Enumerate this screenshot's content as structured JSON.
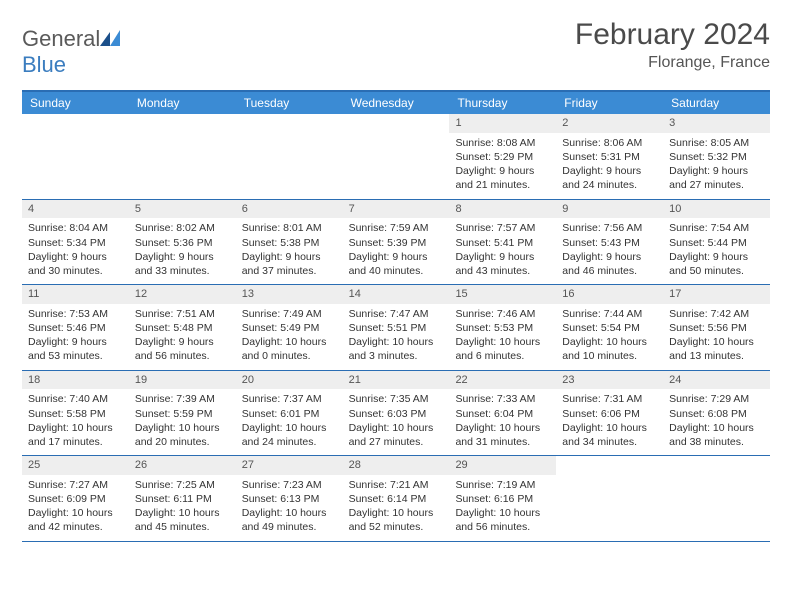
{
  "brand": {
    "part1": "General",
    "part2": "Blue"
  },
  "title": "February 2024",
  "location": "Florange, France",
  "colors": {
    "headerBar": "#3b8bd4",
    "borderBlue": "#2a6db3",
    "dayNumberBg": "#eeeeee",
    "text": "#333333",
    "logoBlue": "#3b7dbf"
  },
  "weekdays": [
    "Sunday",
    "Monday",
    "Tuesday",
    "Wednesday",
    "Thursday",
    "Friday",
    "Saturday"
  ],
  "weeks": [
    [
      {
        "n": "",
        "sunrise": "",
        "sunset": "",
        "daylight1": "",
        "daylight2": ""
      },
      {
        "n": "",
        "sunrise": "",
        "sunset": "",
        "daylight1": "",
        "daylight2": ""
      },
      {
        "n": "",
        "sunrise": "",
        "sunset": "",
        "daylight1": "",
        "daylight2": ""
      },
      {
        "n": "",
        "sunrise": "",
        "sunset": "",
        "daylight1": "",
        "daylight2": ""
      },
      {
        "n": "1",
        "sunrise": "Sunrise: 8:08 AM",
        "sunset": "Sunset: 5:29 PM",
        "daylight1": "Daylight: 9 hours",
        "daylight2": "and 21 minutes."
      },
      {
        "n": "2",
        "sunrise": "Sunrise: 8:06 AM",
        "sunset": "Sunset: 5:31 PM",
        "daylight1": "Daylight: 9 hours",
        "daylight2": "and 24 minutes."
      },
      {
        "n": "3",
        "sunrise": "Sunrise: 8:05 AM",
        "sunset": "Sunset: 5:32 PM",
        "daylight1": "Daylight: 9 hours",
        "daylight2": "and 27 minutes."
      }
    ],
    [
      {
        "n": "4",
        "sunrise": "Sunrise: 8:04 AM",
        "sunset": "Sunset: 5:34 PM",
        "daylight1": "Daylight: 9 hours",
        "daylight2": "and 30 minutes."
      },
      {
        "n": "5",
        "sunrise": "Sunrise: 8:02 AM",
        "sunset": "Sunset: 5:36 PM",
        "daylight1": "Daylight: 9 hours",
        "daylight2": "and 33 minutes."
      },
      {
        "n": "6",
        "sunrise": "Sunrise: 8:01 AM",
        "sunset": "Sunset: 5:38 PM",
        "daylight1": "Daylight: 9 hours",
        "daylight2": "and 37 minutes."
      },
      {
        "n": "7",
        "sunrise": "Sunrise: 7:59 AM",
        "sunset": "Sunset: 5:39 PM",
        "daylight1": "Daylight: 9 hours",
        "daylight2": "and 40 minutes."
      },
      {
        "n": "8",
        "sunrise": "Sunrise: 7:57 AM",
        "sunset": "Sunset: 5:41 PM",
        "daylight1": "Daylight: 9 hours",
        "daylight2": "and 43 minutes."
      },
      {
        "n": "9",
        "sunrise": "Sunrise: 7:56 AM",
        "sunset": "Sunset: 5:43 PM",
        "daylight1": "Daylight: 9 hours",
        "daylight2": "and 46 minutes."
      },
      {
        "n": "10",
        "sunrise": "Sunrise: 7:54 AM",
        "sunset": "Sunset: 5:44 PM",
        "daylight1": "Daylight: 9 hours",
        "daylight2": "and 50 minutes."
      }
    ],
    [
      {
        "n": "11",
        "sunrise": "Sunrise: 7:53 AM",
        "sunset": "Sunset: 5:46 PM",
        "daylight1": "Daylight: 9 hours",
        "daylight2": "and 53 minutes."
      },
      {
        "n": "12",
        "sunrise": "Sunrise: 7:51 AM",
        "sunset": "Sunset: 5:48 PM",
        "daylight1": "Daylight: 9 hours",
        "daylight2": "and 56 minutes."
      },
      {
        "n": "13",
        "sunrise": "Sunrise: 7:49 AM",
        "sunset": "Sunset: 5:49 PM",
        "daylight1": "Daylight: 10 hours",
        "daylight2": "and 0 minutes."
      },
      {
        "n": "14",
        "sunrise": "Sunrise: 7:47 AM",
        "sunset": "Sunset: 5:51 PM",
        "daylight1": "Daylight: 10 hours",
        "daylight2": "and 3 minutes."
      },
      {
        "n": "15",
        "sunrise": "Sunrise: 7:46 AM",
        "sunset": "Sunset: 5:53 PM",
        "daylight1": "Daylight: 10 hours",
        "daylight2": "and 6 minutes."
      },
      {
        "n": "16",
        "sunrise": "Sunrise: 7:44 AM",
        "sunset": "Sunset: 5:54 PM",
        "daylight1": "Daylight: 10 hours",
        "daylight2": "and 10 minutes."
      },
      {
        "n": "17",
        "sunrise": "Sunrise: 7:42 AM",
        "sunset": "Sunset: 5:56 PM",
        "daylight1": "Daylight: 10 hours",
        "daylight2": "and 13 minutes."
      }
    ],
    [
      {
        "n": "18",
        "sunrise": "Sunrise: 7:40 AM",
        "sunset": "Sunset: 5:58 PM",
        "daylight1": "Daylight: 10 hours",
        "daylight2": "and 17 minutes."
      },
      {
        "n": "19",
        "sunrise": "Sunrise: 7:39 AM",
        "sunset": "Sunset: 5:59 PM",
        "daylight1": "Daylight: 10 hours",
        "daylight2": "and 20 minutes."
      },
      {
        "n": "20",
        "sunrise": "Sunrise: 7:37 AM",
        "sunset": "Sunset: 6:01 PM",
        "daylight1": "Daylight: 10 hours",
        "daylight2": "and 24 minutes."
      },
      {
        "n": "21",
        "sunrise": "Sunrise: 7:35 AM",
        "sunset": "Sunset: 6:03 PM",
        "daylight1": "Daylight: 10 hours",
        "daylight2": "and 27 minutes."
      },
      {
        "n": "22",
        "sunrise": "Sunrise: 7:33 AM",
        "sunset": "Sunset: 6:04 PM",
        "daylight1": "Daylight: 10 hours",
        "daylight2": "and 31 minutes."
      },
      {
        "n": "23",
        "sunrise": "Sunrise: 7:31 AM",
        "sunset": "Sunset: 6:06 PM",
        "daylight1": "Daylight: 10 hours",
        "daylight2": "and 34 minutes."
      },
      {
        "n": "24",
        "sunrise": "Sunrise: 7:29 AM",
        "sunset": "Sunset: 6:08 PM",
        "daylight1": "Daylight: 10 hours",
        "daylight2": "and 38 minutes."
      }
    ],
    [
      {
        "n": "25",
        "sunrise": "Sunrise: 7:27 AM",
        "sunset": "Sunset: 6:09 PM",
        "daylight1": "Daylight: 10 hours",
        "daylight2": "and 42 minutes."
      },
      {
        "n": "26",
        "sunrise": "Sunrise: 7:25 AM",
        "sunset": "Sunset: 6:11 PM",
        "daylight1": "Daylight: 10 hours",
        "daylight2": "and 45 minutes."
      },
      {
        "n": "27",
        "sunrise": "Sunrise: 7:23 AM",
        "sunset": "Sunset: 6:13 PM",
        "daylight1": "Daylight: 10 hours",
        "daylight2": "and 49 minutes."
      },
      {
        "n": "28",
        "sunrise": "Sunrise: 7:21 AM",
        "sunset": "Sunset: 6:14 PM",
        "daylight1": "Daylight: 10 hours",
        "daylight2": "and 52 minutes."
      },
      {
        "n": "29",
        "sunrise": "Sunrise: 7:19 AM",
        "sunset": "Sunset: 6:16 PM",
        "daylight1": "Daylight: 10 hours",
        "daylight2": "and 56 minutes."
      },
      {
        "n": "",
        "sunrise": "",
        "sunset": "",
        "daylight1": "",
        "daylight2": ""
      },
      {
        "n": "",
        "sunrise": "",
        "sunset": "",
        "daylight1": "",
        "daylight2": ""
      }
    ]
  ]
}
